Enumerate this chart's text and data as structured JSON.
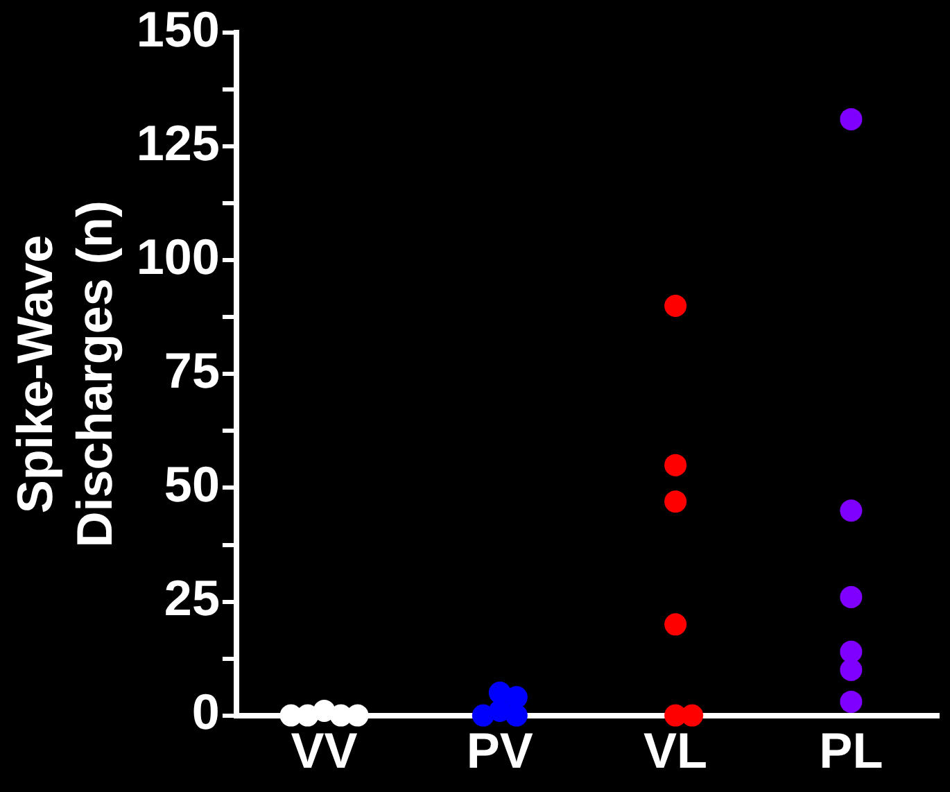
{
  "chart_data": {
    "type": "scatter",
    "ylabel": "Spike-Wave\nDischarges (n)",
    "categories": [
      "VV",
      "PV",
      "VL",
      "PL"
    ],
    "series": [
      {
        "color": "#ffffff",
        "x": [
          "VV",
          "VV",
          "VV",
          "VV",
          "VV"
        ],
        "values": [
          1,
          0,
          0,
          0,
          0
        ]
      },
      {
        "color": "#0000ff",
        "x": [
          "PV",
          "PV",
          "PV",
          "PV",
          "PV"
        ],
        "values": [
          5,
          1,
          0,
          0,
          4
        ]
      },
      {
        "color": "#ff0000",
        "x": [
          "VL",
          "VL",
          "VL",
          "VL",
          "VL",
          "VL"
        ],
        "values": [
          0,
          47,
          90,
          55,
          20,
          0
        ]
      },
      {
        "color": "#8000ff",
        "x": [
          "PL",
          "PL",
          "PL",
          "PL",
          "PL",
          "PL"
        ],
        "values": [
          131,
          45,
          26,
          14,
          10,
          3
        ]
      }
    ],
    "ylim": [
      0,
      150
    ],
    "yticks": [
      0,
      {
        "value": 12.5,
        "label": null
      },
      25,
      {
        "value": 37.5,
        "label": null
      },
      50,
      {
        "value": 62.5,
        "label": null
      },
      75,
      {
        "value": 87.5,
        "label": null
      },
      100,
      {
        "value": 112.5,
        "label": null
      },
      125,
      {
        "value": 137.5,
        "label": null
      },
      150
    ],
    "grid": false,
    "legend": false,
    "marker": "circle"
  }
}
